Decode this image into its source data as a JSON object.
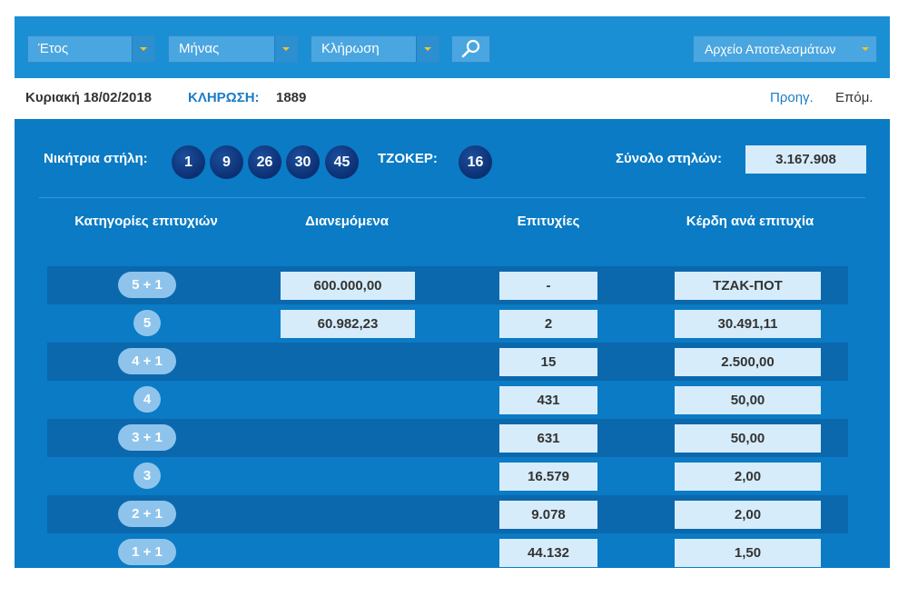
{
  "toolbar": {
    "year_label": "Έτος",
    "month_label": "Μήνας",
    "draw_label": "Κλήρωση",
    "archive_label": "Αρχείο Αποτελεσμάτων"
  },
  "info": {
    "date": "Κυριακή 18/02/2018",
    "draw_caption": "ΚΛΗΡΩΣΗ:",
    "draw_number": "1889",
    "prev_label": "Προηγ.",
    "next_label": "Επόμ."
  },
  "winning": {
    "label": "Νικήτρια στήλη:",
    "numbers": [
      "1",
      "9",
      "26",
      "30",
      "45"
    ],
    "joker_label": "ΤΖΟΚΕΡ:",
    "joker": "16",
    "total_label": "Σύνολο στηλών:",
    "total": "3.167.908"
  },
  "table": {
    "headers": [
      "Κατηγορίες επιτυχιών",
      "Διανεμόμενα",
      "Επιτυχίες",
      "Κέρδη ανά επιτυχία"
    ],
    "rows": [
      {
        "category": "5 + 1",
        "distributed": "600.000,00",
        "winners": "-",
        "prize": "ΤΖΑΚ-ΠΟΤ"
      },
      {
        "category": "5",
        "distributed": "60.982,23",
        "winners": "2",
        "prize": "30.491,11"
      },
      {
        "category": "4 + 1",
        "distributed": "",
        "winners": "15",
        "prize": "2.500,00"
      },
      {
        "category": "4",
        "distributed": "",
        "winners": "431",
        "prize": "50,00"
      },
      {
        "category": "3 + 1",
        "distributed": "",
        "winners": "631",
        "prize": "50,00"
      },
      {
        "category": "3",
        "distributed": "",
        "winners": "16.579",
        "prize": "2,00"
      },
      {
        "category": "2 + 1",
        "distributed": "",
        "winners": "9.078",
        "prize": "2,00"
      },
      {
        "category": "1 + 1",
        "distributed": "",
        "winners": "44.132",
        "prize": "1,50"
      }
    ]
  }
}
